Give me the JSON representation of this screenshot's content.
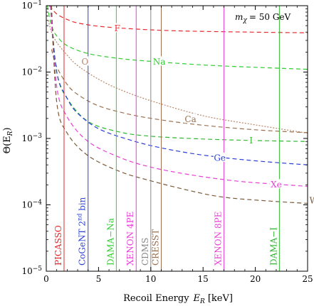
{
  "chart_data": {
    "type": "line",
    "title": "",
    "xlabel": "Recoil Energy",
    "xlabel_symbol": "E",
    "xlabel_sub": "R",
    "xlabel_unit": "[keV]",
    "ylabel": "Θ(E",
    "ylabel_sub": "R",
    "ylabel_close": ")",
    "annotation": "m",
    "annotation_sub": "χ",
    "annotation_value": "= 50 GeV",
    "xlim": [
      0,
      25
    ],
    "ylim": [
      1e-05,
      0.1
    ],
    "yscale": "log",
    "grid": false,
    "x_ticks": [
      "0",
      "5",
      "10",
      "15",
      "20",
      "25"
    ],
    "y_ticks": [
      {
        "base": "10",
        "exp": "−5"
      },
      {
        "base": "10",
        "exp": "−4"
      },
      {
        "base": "10",
        "exp": "−3"
      },
      {
        "base": "10",
        "exp": "−2"
      },
      {
        "base": "10",
        "exp": "−1"
      }
    ],
    "series": [
      {
        "name": "F",
        "color": "#e8262a",
        "points": [
          [
            0.3,
            0.1
          ],
          [
            1,
            0.075
          ],
          [
            2,
            0.062
          ],
          [
            3,
            0.055
          ],
          [
            5,
            0.049
          ],
          [
            8,
            0.045
          ],
          [
            12,
            0.042
          ],
          [
            17,
            0.0405
          ],
          [
            25,
            0.039
          ]
        ]
      },
      {
        "name": "Na",
        "color": "#33cc33",
        "points": [
          [
            0.1,
            0.1
          ],
          [
            0.5,
            0.05
          ],
          [
            1,
            0.035
          ],
          [
            2,
            0.025
          ],
          [
            4,
            0.019
          ],
          [
            7,
            0.016
          ],
          [
            10,
            0.0145
          ],
          [
            15,
            0.0128
          ],
          [
            20,
            0.0118
          ],
          [
            25,
            0.011
          ]
        ]
      },
      {
        "name": "O",
        "color": "#b8876a",
        "points": [
          [
            0.2,
            0.06
          ],
          [
            0.5,
            0.04
          ],
          [
            1,
            0.028
          ],
          [
            2,
            0.018
          ],
          [
            3,
            0.0125
          ],
          [
            5,
            0.0078
          ],
          [
            7,
            0.0055
          ],
          [
            10,
            0.0037
          ],
          [
            15,
            0.0022
          ],
          [
            20,
            0.0016
          ],
          [
            25,
            0.0012
          ]
        ]
      },
      {
        "name": "Ca",
        "color": "#9a6f4e",
        "points": [
          [
            0.5,
            0.022
          ],
          [
            1,
            0.012
          ],
          [
            2,
            0.0065
          ],
          [
            3,
            0.0046
          ],
          [
            5,
            0.0031
          ],
          [
            8,
            0.0023
          ],
          [
            11,
            0.0019
          ],
          [
            15,
            0.00158
          ],
          [
            20,
            0.00135
          ],
          [
            25,
            0.00122
          ]
        ]
      },
      {
        "name": "I",
        "color": "#2db82d",
        "points": [
          [
            0.4,
            0.1
          ],
          [
            1,
            0.01
          ],
          [
            2,
            0.004
          ],
          [
            4,
            0.0018
          ],
          [
            7,
            0.00125
          ],
          [
            10,
            0.00108
          ],
          [
            15,
            0.00098
          ],
          [
            20,
            0.00093
          ],
          [
            25,
            0.0009
          ]
        ]
      },
      {
        "name": "Ge",
        "color": "#2a3fd6",
        "points": [
          [
            0.4,
            0.1
          ],
          [
            1,
            0.01
          ],
          [
            2,
            0.004
          ],
          [
            3,
            0.0024
          ],
          [
            5,
            0.0014
          ],
          [
            8,
            0.00095
          ],
          [
            11,
            0.00072
          ],
          [
            15,
            0.00056
          ],
          [
            20,
            0.00046
          ],
          [
            25,
            0.0004
          ]
        ]
      },
      {
        "name": "Xe",
        "color": "#e63fd6",
        "points": [
          [
            0.4,
            0.1
          ],
          [
            1,
            0.006
          ],
          [
            2,
            0.0021
          ],
          [
            4,
            0.0009
          ],
          [
            7,
            0.00052
          ],
          [
            10,
            0.00037
          ],
          [
            14,
            0.00028
          ],
          [
            18,
            0.00023
          ],
          [
            21,
            0.00021
          ],
          [
            25,
            0.00019
          ]
        ]
      },
      {
        "name": "W",
        "color": "#7a5a3a",
        "points": [
          [
            0.5,
            0.1
          ],
          [
            1,
            0.0035
          ],
          [
            2,
            0.0012
          ],
          [
            4,
            0.00055
          ],
          [
            7,
            0.00032
          ],
          [
            10,
            0.00023
          ],
          [
            14,
            0.00016
          ],
          [
            17,
            0.00013
          ],
          [
            21,
            0.000115
          ],
          [
            25,
            0.000105
          ]
        ]
      }
    ],
    "series_label_positions": [
      {
        "name": "F",
        "x": 6.8,
        "y": 0.046
      },
      {
        "name": "Na",
        "x": 10.8,
        "y": 0.0145
      },
      {
        "name": "O",
        "x": 3.7,
        "y": 0.0145
      },
      {
        "name": "Ca",
        "x": 13.8,
        "y": 0.00198
      },
      {
        "name": "I",
        "x": 19.6,
        "y": 0.000945
      },
      {
        "name": "Ge",
        "x": 16.6,
        "y": 0.000515
      },
      {
        "name": "Xe",
        "x": 22.0,
        "y": 0.000205
      },
      {
        "name": "W",
        "x": 25.6,
        "y": 0.000118
      }
    ],
    "experiments": [
      {
        "name": "PICASSO",
        "x": 1.7,
        "color": "#e8262a"
      },
      {
        "name": "CoGeNT 2",
        "sup": "nd",
        "suffix": " bin",
        "x": 4.0,
        "color": "#2a3fd6"
      },
      {
        "name": "DAMA−Na",
        "x": 6.7,
        "color": "#33cc33"
      },
      {
        "name": "XENON 4PE",
        "x": 8.6,
        "color": "#e63fd6"
      },
      {
        "name": "CDMS",
        "x": 10.0,
        "color": "#888888"
      },
      {
        "name": "CRESST",
        "x": 11.0,
        "color": "#9a6f4e"
      },
      {
        "name": "XENON 8PE",
        "x": 17.0,
        "color": "#e63fd6"
      },
      {
        "name": "DAMA−I",
        "x": 22.3,
        "color": "#2db82d"
      }
    ]
  }
}
